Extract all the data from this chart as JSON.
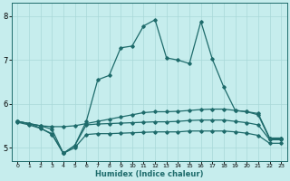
{
  "xlabel": "Humidex (Indice chaleur)",
  "bg_color": "#c6eded",
  "line_color": "#1e6b6b",
  "grid_color": "#a8d8d8",
  "xlim": [
    -0.5,
    23.5
  ],
  "ylim": [
    4.7,
    8.3
  ],
  "yticks": [
    5,
    6,
    7,
    8
  ],
  "xticks": [
    0,
    1,
    2,
    3,
    4,
    5,
    6,
    7,
    8,
    9,
    10,
    11,
    12,
    13,
    14,
    15,
    16,
    17,
    18,
    19,
    20,
    21,
    22,
    23
  ],
  "main_x": [
    0,
    1,
    2,
    3,
    4,
    5,
    6,
    7,
    8,
    9,
    10,
    11,
    12,
    13,
    14,
    15,
    16,
    17,
    18,
    19,
    20,
    21,
    22,
    23
  ],
  "main_y": [
    5.6,
    5.55,
    5.45,
    5.3,
    4.87,
    5.05,
    5.6,
    6.55,
    6.65,
    7.28,
    7.32,
    7.78,
    7.92,
    7.05,
    7.0,
    6.92,
    7.88,
    7.02,
    6.38,
    5.85,
    5.82,
    5.78,
    5.22,
    5.22
  ],
  "flat1_x": [
    0,
    1,
    2,
    3,
    4,
    5,
    6,
    7,
    8,
    9,
    10,
    11,
    12,
    13,
    14,
    15,
    16,
    17,
    18,
    19,
    20,
    21,
    22,
    23
  ],
  "flat1_y": [
    5.6,
    5.55,
    5.5,
    5.48,
    5.48,
    5.5,
    5.55,
    5.6,
    5.65,
    5.7,
    5.75,
    5.8,
    5.82,
    5.82,
    5.83,
    5.85,
    5.87,
    5.88,
    5.88,
    5.85,
    5.82,
    5.75,
    5.2,
    5.2
  ],
  "flat2_x": [
    0,
    1,
    2,
    3,
    4,
    5,
    6,
    7,
    8,
    9,
    10,
    11,
    12,
    13,
    14,
    15,
    16,
    17,
    18,
    19,
    20,
    21,
    22,
    23
  ],
  "flat2_y": [
    5.6,
    5.55,
    5.5,
    5.42,
    4.87,
    5.05,
    5.52,
    5.54,
    5.55,
    5.56,
    5.57,
    5.58,
    5.59,
    5.59,
    5.6,
    5.62,
    5.63,
    5.63,
    5.63,
    5.6,
    5.57,
    5.52,
    5.18,
    5.18
  ],
  "flat3_x": [
    0,
    1,
    2,
    3,
    4,
    5,
    6,
    7,
    8,
    9,
    10,
    11,
    12,
    13,
    14,
    15,
    16,
    17,
    18,
    19,
    20,
    21,
    22,
    23
  ],
  "flat3_y": [
    5.58,
    5.52,
    5.44,
    5.32,
    4.87,
    5.0,
    5.3,
    5.32,
    5.32,
    5.33,
    5.34,
    5.35,
    5.36,
    5.36,
    5.36,
    5.38,
    5.38,
    5.38,
    5.38,
    5.36,
    5.33,
    5.28,
    5.1,
    5.1
  ]
}
